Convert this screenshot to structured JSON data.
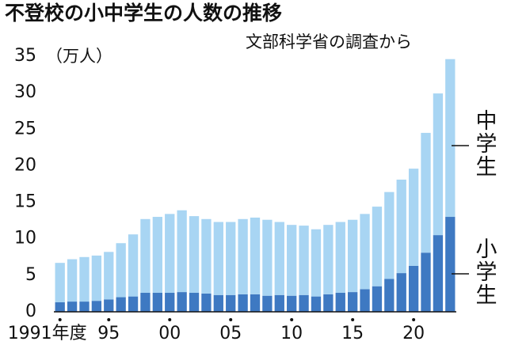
{
  "chart_data": {
    "type": "stacked_bar",
    "title": "不登校の小中学生の人数の推移",
    "subtitle": "文部科学省の調査から",
    "y_label": "（万人）",
    "categories": [
      "1991年度",
      null,
      null,
      null,
      "95",
      null,
      null,
      null,
      null,
      "00",
      null,
      null,
      null,
      null,
      "05",
      null,
      null,
      null,
      null,
      "10",
      null,
      null,
      null,
      null,
      "15",
      null,
      null,
      null,
      null,
      "20",
      null,
      null,
      null
    ],
    "series": [
      {
        "name": "小学生",
        "color": "#3e79c2",
        "values": [
          1.3,
          1.4,
          1.4,
          1.5,
          1.7,
          2.0,
          2.1,
          2.6,
          2.6,
          2.6,
          2.7,
          2.6,
          2.5,
          2.3,
          2.3,
          2.4,
          2.4,
          2.2,
          2.3,
          2.2,
          2.3,
          2.1,
          2.4,
          2.6,
          2.7,
          3.1,
          3.5,
          4.5,
          5.3,
          6.3,
          8.1,
          10.5,
          13.0
        ]
      },
      {
        "name": "中学生",
        "color": "#a8d5f3",
        "values": [
          5.4,
          5.8,
          6.1,
          6.2,
          6.5,
          7.4,
          8.5,
          10.1,
          10.4,
          10.8,
          11.2,
          10.5,
          10.2,
          10.0,
          10.0,
          10.3,
          10.5,
          10.4,
          10.0,
          9.7,
          9.5,
          9.2,
          9.5,
          9.7,
          9.9,
          10.3,
          10.9,
          11.9,
          12.8,
          13.3,
          16.4,
          19.4,
          21.6
        ]
      }
    ],
    "ylim": [
      0,
      35
    ],
    "yticks": [
      0,
      5,
      10,
      15,
      20,
      25,
      30,
      35
    ]
  }
}
